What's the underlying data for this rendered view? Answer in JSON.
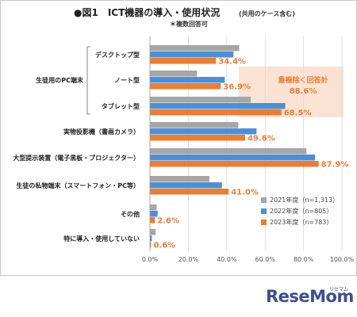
{
  "chart_data": {
    "type": "bar",
    "orientation": "horizontal",
    "title": "●図1　ICT機器の導入・使用状況",
    "title_note": "(共用のケース含む)",
    "subtitle": "＊複数回答可",
    "xlim": [
      0,
      100
    ],
    "xticks": [
      "0.0%",
      "20.0%",
      "40.0%",
      "60.0%",
      "80.0%",
      "100.0%"
    ],
    "categories": [
      "デスクトップ型",
      "ノート型",
      "タブレット型",
      "実物投影機（書画カメラ）",
      "大型提示装置（電子黒板・プロジェクター）",
      "生徒の私物端末（スマートフォン・PC等）",
      "その他",
      "特に導入・使用していない"
    ],
    "group_label": "生徒用のPC端末",
    "series": [
      {
        "name": "2021年度（n=1,313）",
        "color": "#a6a6a6",
        "values": [
          46.5,
          24.5,
          52.5,
          46.0,
          81.5,
          31.0,
          3.5,
          3.0
        ]
      },
      {
        "name": "2022年度（n=805）",
        "color": "#4a90d9",
        "values": [
          43.5,
          39.0,
          70.5,
          55.5,
          86.0,
          37.5,
          4.0,
          1.0
        ]
      },
      {
        "name": "2023年度（n=783）",
        "color": "#ed7d31",
        "values": [
          34.4,
          36.9,
          68.5,
          49.6,
          87.9,
          41.0,
          2.6,
          0.6
        ]
      }
    ],
    "data_labels": [
      "34.4%",
      "36.9%",
      "68.5%",
      "49.6%",
      "87.9%",
      "41.0%",
      "2.6%",
      "0.6%"
    ],
    "annotation": {
      "line1": "重複除く回答計",
      "line2": "88.6%"
    },
    "legend_position": "bottom-right"
  },
  "watermark": {
    "text": "ReseMom",
    "small": "リセマム"
  }
}
